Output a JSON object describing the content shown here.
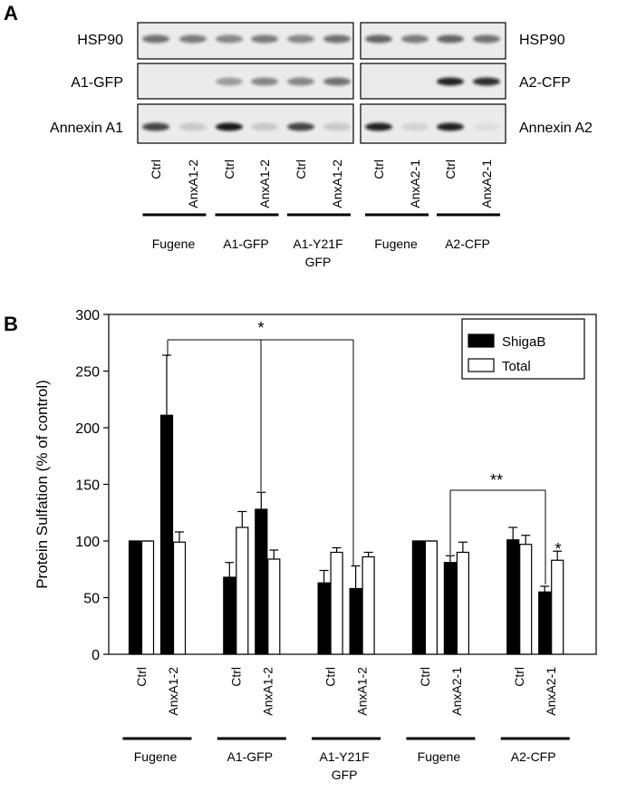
{
  "panel_labels": [
    "A",
    "B"
  ],
  "blot": {
    "left_rows": [
      "HSP90",
      "A1-GFP",
      "Annexin A1"
    ],
    "right_rows": [
      "HSP90",
      "A2-CFP",
      "Annexin A2"
    ],
    "lanes": [
      "Ctrl",
      "AnxA1-2",
      "Ctrl",
      "AnxA1-2",
      "Ctrl",
      "AnxA1-2",
      "Ctrl",
      "AnxA2-1",
      "Ctrl",
      "AnxA2-1"
    ],
    "groups": [
      "Fugene",
      "A1-GFP",
      "A1-Y21F GFP",
      "Fugene",
      "A2-CFP"
    ]
  },
  "chart_data": {
    "type": "bar",
    "ylabel": "Protein Sulfation (% of control)",
    "categories": [
      "Ctrl",
      "AnxA1-2",
      "Ctrl",
      "AnxA1-2",
      "Ctrl",
      "AnxA1-2",
      "Ctrl",
      "AnxA2-1",
      "Ctrl",
      "AnxA2-1"
    ],
    "groups": [
      "Fugene",
      "A1-GFP",
      "A1-Y21F GFP",
      "Fugene",
      "A2-CFP"
    ],
    "series": [
      {
        "name": "ShigaB",
        "color": "#000000",
        "values": [
          100,
          211,
          68,
          128,
          63,
          58,
          100,
          81,
          101,
          55
        ],
        "errors": [
          0,
          53,
          13,
          15,
          11,
          20,
          0,
          6,
          11,
          5
        ]
      },
      {
        "name": "Total",
        "color": "#ffffff",
        "values": [
          100,
          99,
          112,
          84,
          90,
          86,
          100,
          90,
          97,
          83
        ],
        "errors": [
          0,
          9,
          14,
          8,
          4,
          4,
          0,
          9,
          8,
          8
        ]
      }
    ],
    "ylim": [
      0,
      300
    ],
    "yticks": [
      0,
      50,
      100,
      150,
      200,
      250,
      300
    ],
    "legend": "upper right",
    "annotations": [
      "*",
      "**",
      "*"
    ]
  }
}
